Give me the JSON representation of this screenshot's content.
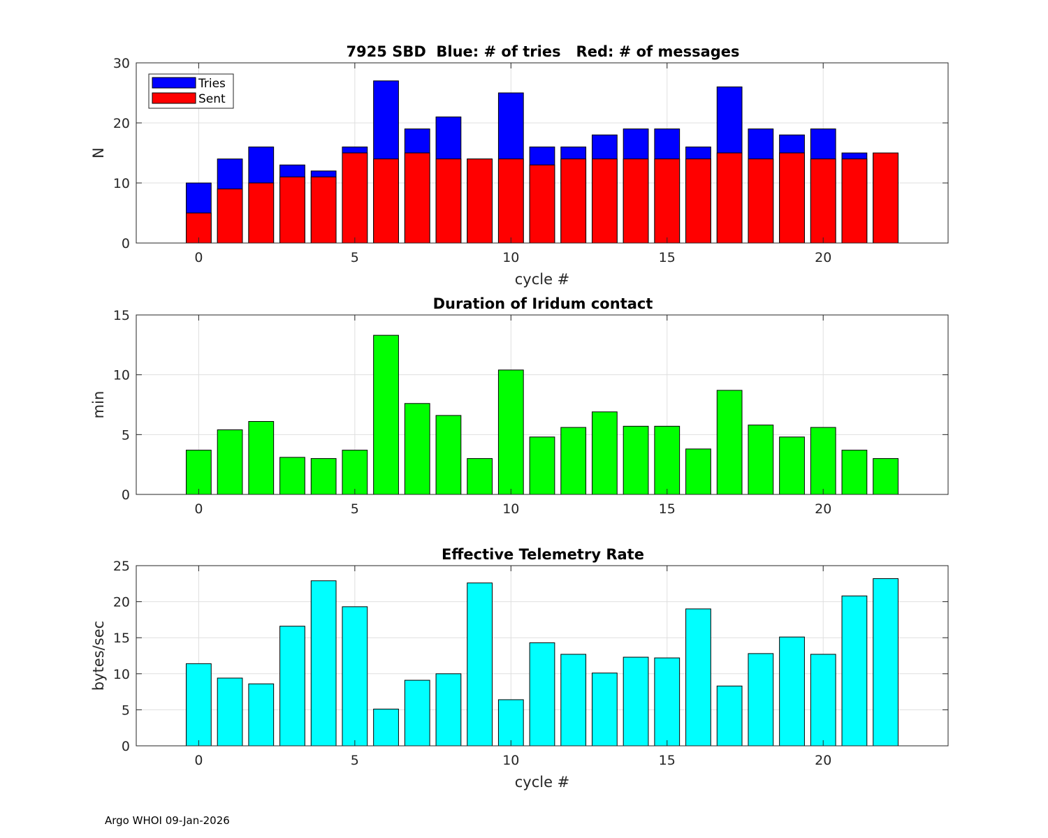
{
  "footer": "Argo WHOI 09-Jan-2026",
  "colors": {
    "tries": "#0000ff",
    "sent": "#ff0000",
    "duration": "#00ff00",
    "rate": "#00ffff",
    "grid": "#dfdfdf",
    "axis": "#262626"
  },
  "chart_data": [
    {
      "type": "bar",
      "stacked": "overlay",
      "title": "7925 SBD  Blue: # of tries   Red: # of messages",
      "xlabel": "cycle #",
      "ylabel": "N",
      "xlim": [
        -2,
        24
      ],
      "ylim": [
        0,
        30
      ],
      "xticks": [
        0,
        5,
        10,
        15,
        20
      ],
      "yticks": [
        0,
        10,
        20,
        30
      ],
      "grid": true,
      "legend_position": "top-left",
      "x": [
        0,
        1,
        2,
        3,
        4,
        5,
        6,
        7,
        8,
        9,
        10,
        11,
        12,
        13,
        14,
        15,
        16,
        17,
        18,
        19,
        20,
        21,
        22
      ],
      "series": [
        {
          "name": "Tries",
          "color": "#0000ff",
          "values": [
            10,
            14,
            16,
            13,
            12,
            16,
            27,
            19,
            21,
            14,
            25,
            16,
            16,
            18,
            19,
            19,
            16,
            26,
            19,
            18,
            19,
            15,
            15
          ]
        },
        {
          "name": "Sent",
          "color": "#ff0000",
          "values": [
            5,
            9,
            10,
            11,
            11,
            15,
            14,
            15,
            14,
            14,
            14,
            13,
            14,
            14,
            14,
            14,
            14,
            15,
            14,
            15,
            14,
            14,
            15
          ]
        }
      ]
    },
    {
      "type": "bar",
      "title": "Duration of Iridum contact",
      "xlabel": "",
      "ylabel": "min",
      "xlim": [
        -2,
        24
      ],
      "ylim": [
        0,
        15
      ],
      "xticks": [
        0,
        5,
        10,
        15,
        20
      ],
      "yticks": [
        0,
        5,
        10,
        15
      ],
      "grid": true,
      "x": [
        0,
        1,
        2,
        3,
        4,
        5,
        6,
        7,
        8,
        9,
        10,
        11,
        12,
        13,
        14,
        15,
        16,
        17,
        18,
        19,
        20,
        21,
        22
      ],
      "series": [
        {
          "name": "Duration",
          "color": "#00ff00",
          "values": [
            3.7,
            5.4,
            6.1,
            3.1,
            3.0,
            3.7,
            13.3,
            7.6,
            6.6,
            3.0,
            10.4,
            4.8,
            5.6,
            6.9,
            5.7,
            5.7,
            3.8,
            8.7,
            5.8,
            4.8,
            5.6,
            3.7,
            3.0
          ]
        }
      ]
    },
    {
      "type": "bar",
      "title": "Effective Telemetry Rate",
      "xlabel": "cycle #",
      "ylabel": "bytes/sec",
      "xlim": [
        -2,
        24
      ],
      "ylim": [
        0,
        25
      ],
      "xticks": [
        0,
        5,
        10,
        15,
        20
      ],
      "yticks": [
        0,
        5,
        10,
        15,
        20,
        25
      ],
      "grid": true,
      "x": [
        0,
        1,
        2,
        3,
        4,
        5,
        6,
        7,
        8,
        9,
        10,
        11,
        12,
        13,
        14,
        15,
        16,
        17,
        18,
        19,
        20,
        21,
        22
      ],
      "series": [
        {
          "name": "Rate",
          "color": "#00ffff",
          "values": [
            11.4,
            9.4,
            8.6,
            16.6,
            22.9,
            19.3,
            5.1,
            9.1,
            10.0,
            22.6,
            6.4,
            14.3,
            12.7,
            10.1,
            12.3,
            12.2,
            19.0,
            8.3,
            12.8,
            15.1,
            12.7,
            20.8,
            23.2
          ]
        }
      ]
    }
  ]
}
